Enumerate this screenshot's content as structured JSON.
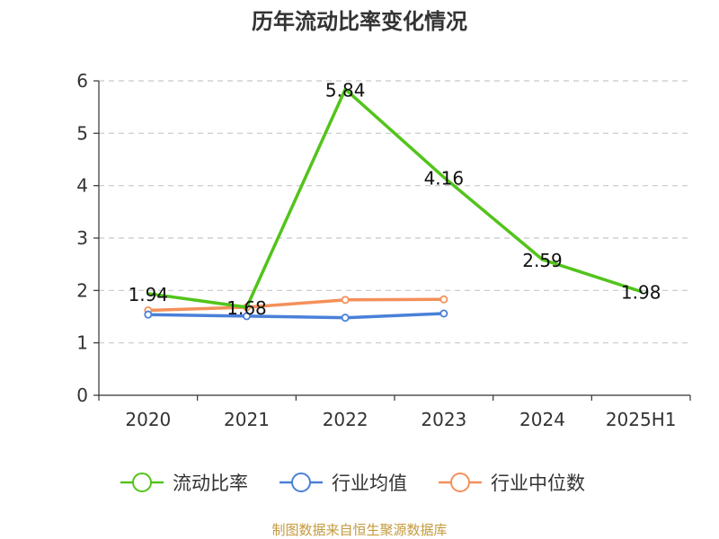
{
  "chart_data": {
    "type": "line",
    "title": "历年流动比率变化情况",
    "categories": [
      "2020",
      "2021",
      "2022",
      "2023",
      "2024",
      "2025H1"
    ],
    "ylim": [
      0,
      6
    ],
    "yticks": [
      "0",
      "1",
      "2",
      "3",
      "4",
      "5",
      "6"
    ],
    "grid": true,
    "legend_position": "bottom",
    "series": [
      {
        "name": "流动比率",
        "color": "#52c41a",
        "values": [
          1.94,
          1.68,
          5.84,
          4.16,
          2.59,
          1.98
        ],
        "labels": [
          "1.94",
          "1.68",
          "5.84",
          "4.16",
          "2.59",
          "1.98"
        ],
        "markers": false
      },
      {
        "name": "行业均值",
        "color": "#4a80d9",
        "values": [
          1.54,
          1.51,
          1.48,
          1.56,
          null,
          null
        ],
        "markers": true
      },
      {
        "name": "行业中位数",
        "color": "#f4905a",
        "values": [
          1.62,
          1.68,
          1.82,
          1.83,
          null,
          null
        ],
        "markers": true
      }
    ]
  },
  "source": {
    "text": "制图数据来自恒生聚源数据库",
    "color": "#c49a3c"
  }
}
